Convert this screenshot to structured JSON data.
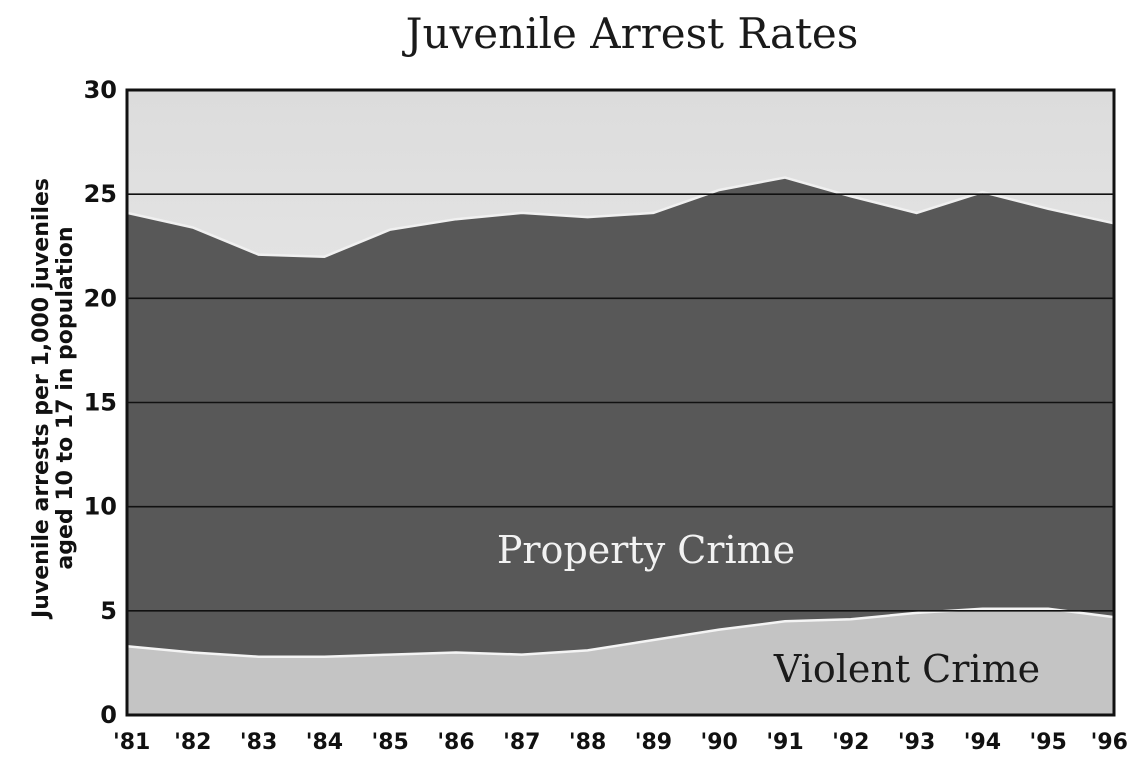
{
  "chart_data": {
    "type": "area",
    "title": "Juvenile Arrest Rates",
    "ylabel_lines": [
      "Juvenile arrests per 1,000 juveniles",
      "aged 10 to 17 in population"
    ],
    "xlabel": "",
    "categories": [
      "'81",
      "'82",
      "'83",
      "'84",
      "'85",
      "'86",
      "'87",
      "'88",
      "'89",
      "'90",
      "'91",
      "'92",
      "'93",
      "'94",
      "'95",
      "'96"
    ],
    "yticks": [
      "0",
      "5",
      "10",
      "15",
      "20",
      "25",
      "30"
    ],
    "ylim": [
      0,
      30
    ],
    "grid": true,
    "stacked": true,
    "series": [
      {
        "name": "Violent Crime",
        "values": [
          3.3,
          3.0,
          2.8,
          2.8,
          2.9,
          3.0,
          2.9,
          3.1,
          3.6,
          4.1,
          4.5,
          4.6,
          4.9,
          5.1,
          5.1,
          4.7
        ]
      },
      {
        "name": "Property Crime",
        "values": [
          20.8,
          20.4,
          19.3,
          19.2,
          20.4,
          20.8,
          21.2,
          20.8,
          20.5,
          21.1,
          21.3,
          20.3,
          19.2,
          20.0,
          19.2,
          18.9
        ]
      }
    ],
    "totals": [
      24.1,
      23.4,
      22.1,
      22.0,
      23.3,
      23.8,
      24.1,
      23.9,
      24.1,
      25.2,
      25.8,
      24.9,
      24.1,
      25.1,
      24.3,
      23.6
    ],
    "colors": {
      "property_area": "#585858",
      "violent_area": "#c4c4c4",
      "background_top": "#dcdcdc",
      "background_bottom": "#f6f6f6",
      "property_label": "#f2f2f2",
      "violent_label": "#1a1a1a"
    }
  }
}
